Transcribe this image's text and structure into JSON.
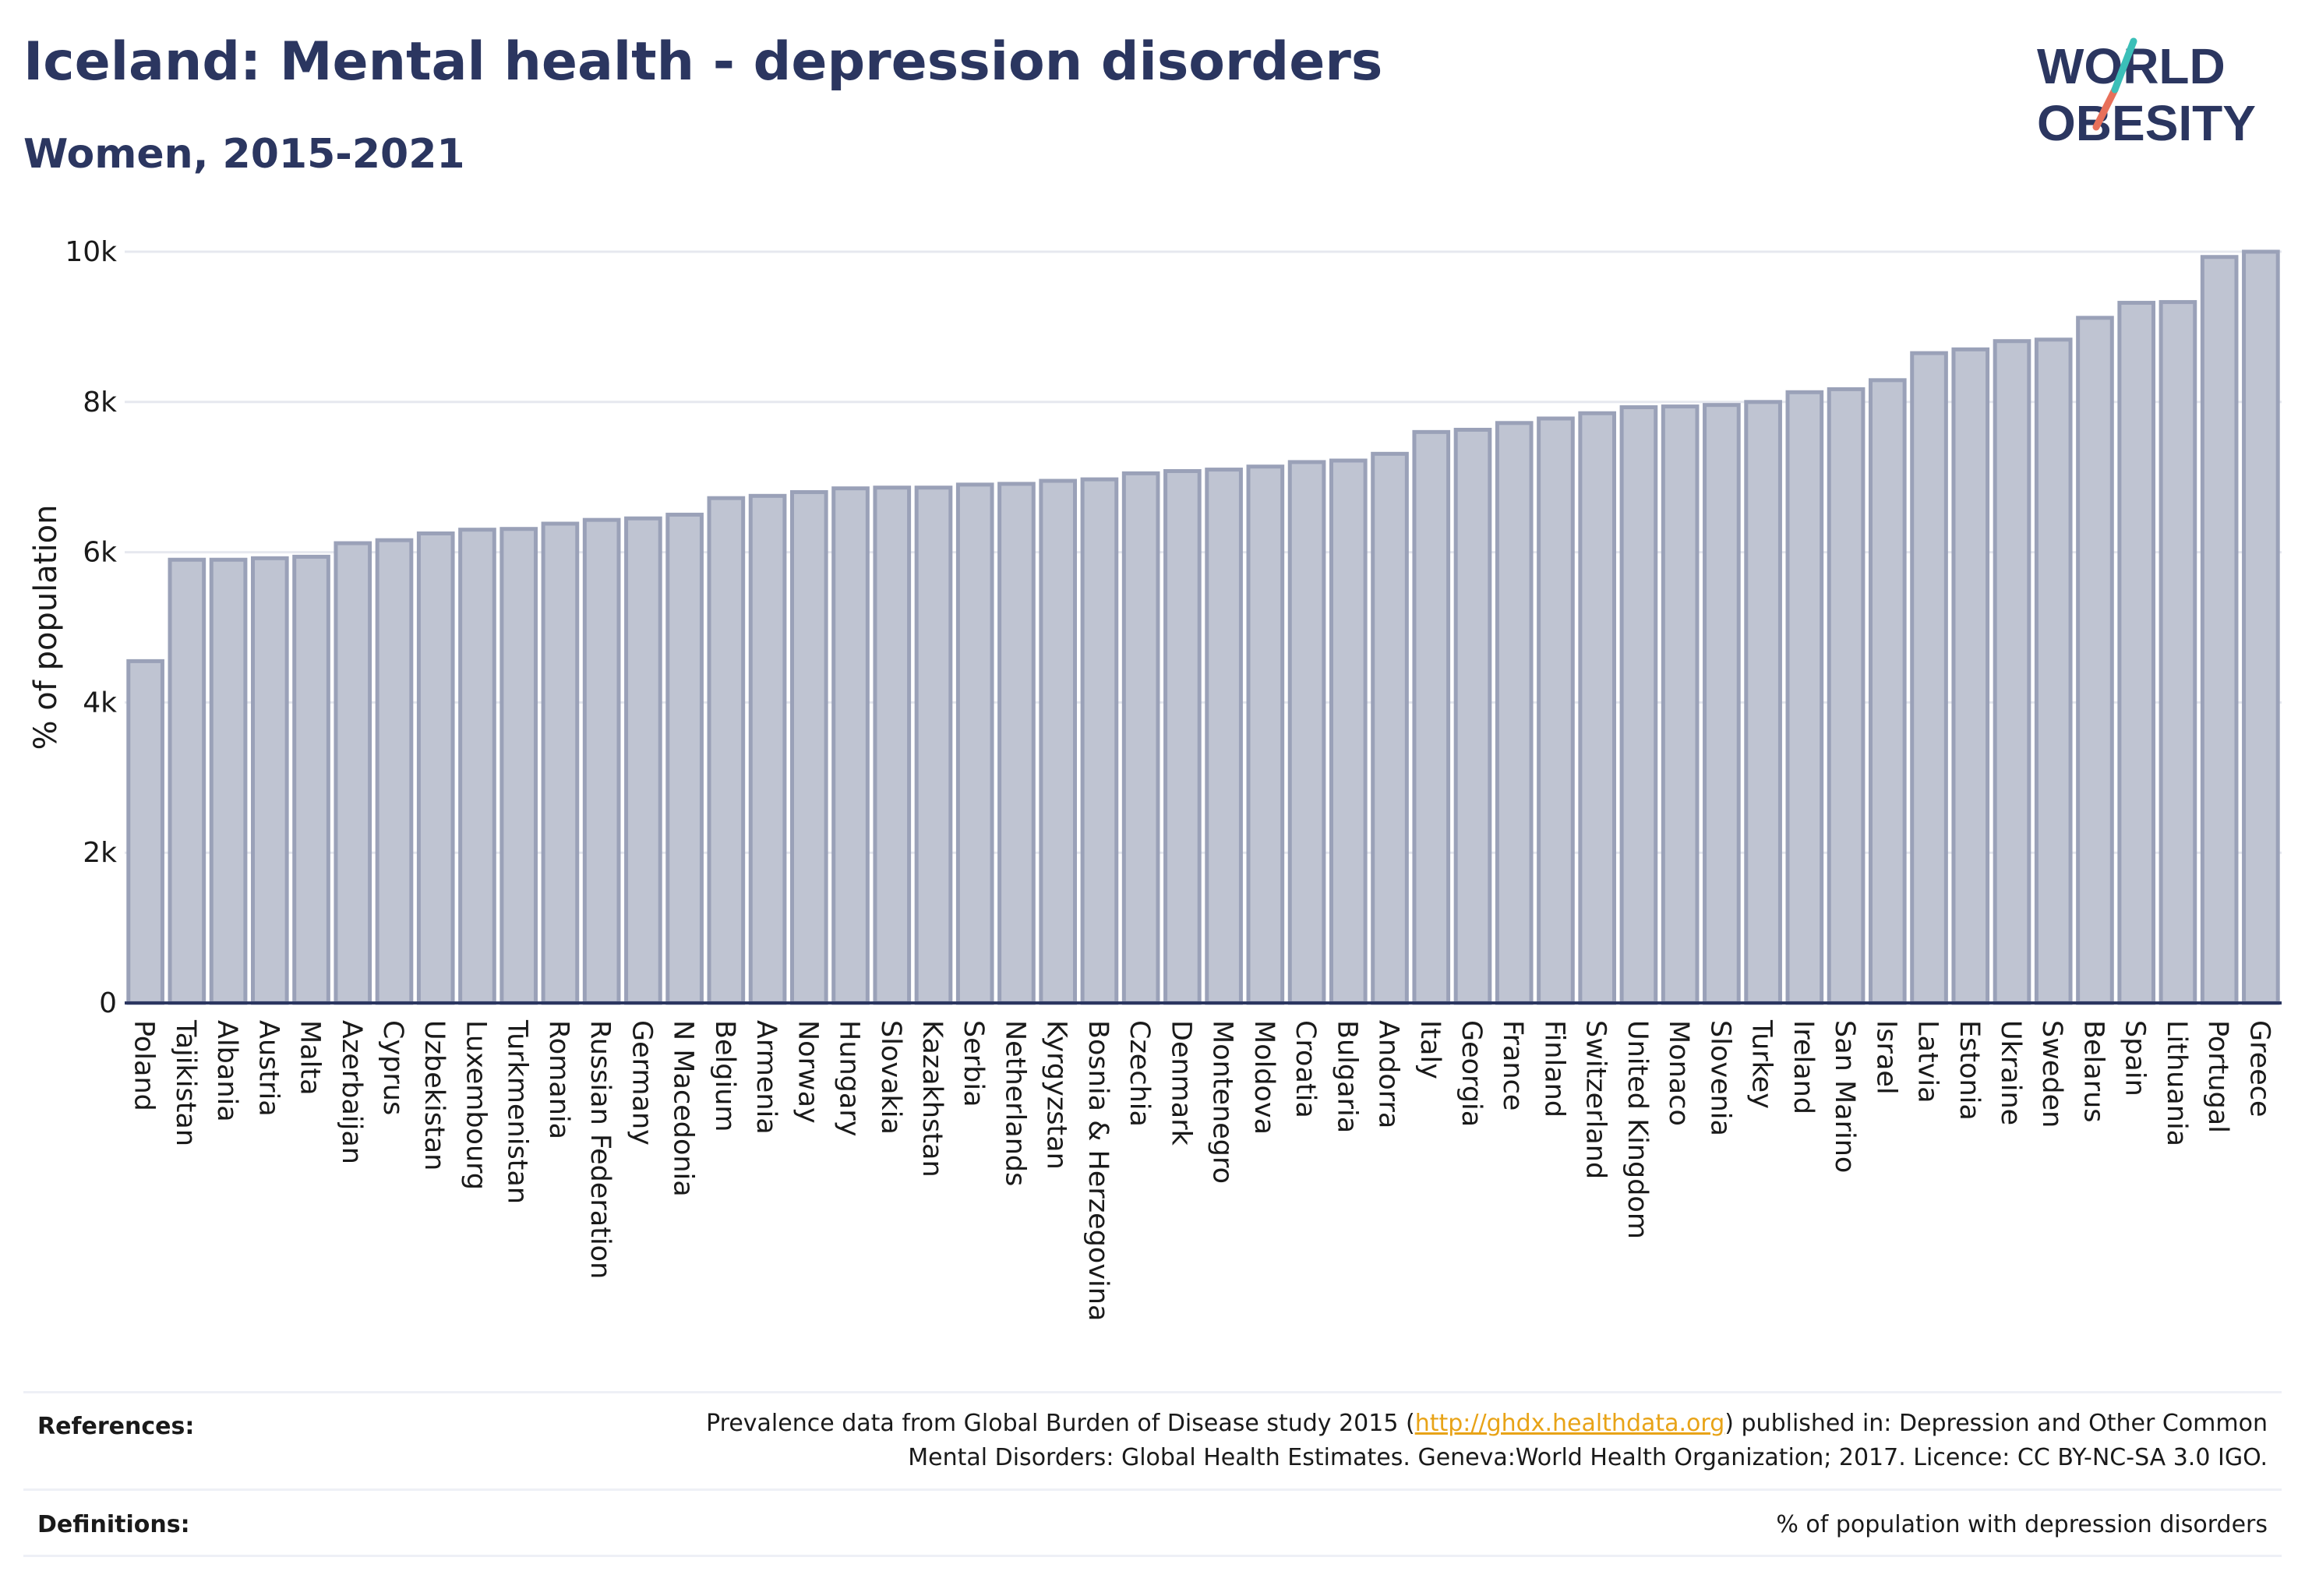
{
  "header": {
    "title": "Iceland: Mental health - depression disorders",
    "subtitle": "Women, 2015-2021"
  },
  "logo": {
    "line1": "WORLD",
    "line2": "OBESITY",
    "text_color": "#2b3660",
    "slash_top_color": "#3bbfb8",
    "slash_bottom_color": "#e8705a"
  },
  "colors": {
    "bar_fill": "#bfc4d2",
    "bar_stroke": "#9aa1b8",
    "grid": "#e6e8ef",
    "axis": "#2b3660",
    "text": "#1a1a1a",
    "link": "#e8a317"
  },
  "chart_data": {
    "type": "bar",
    "title": "",
    "xlabel": "",
    "ylabel": "% of population",
    "ylim": [
      0,
      10000
    ],
    "yticks": [
      0,
      2000,
      4000,
      6000,
      8000,
      10000
    ],
    "ytick_labels": [
      "0",
      "2k",
      "4k",
      "6k",
      "8k",
      "10k"
    ],
    "grid": true,
    "categories": [
      "Poland",
      "Tajikistan",
      "Albania",
      "Austria",
      "Malta",
      "Azerbaijan",
      "Cyprus",
      "Uzbekistan",
      "Luxembourg",
      "Turkmenistan",
      "Romania",
      "Russian Federation",
      "Germany",
      "N Macedonia",
      "Belgium",
      "Armenia",
      "Norway",
      "Hungary",
      "Slovakia",
      "Kazakhstan",
      "Serbia",
      "Netherlands",
      "Kyrgyzstan",
      "Bosnia & Herzegovina",
      "Czechia",
      "Denmark",
      "Montenegro",
      "Moldova",
      "Croatia",
      "Bulgaria",
      "Andorra",
      "Italy",
      "Georgia",
      "France",
      "Finland",
      "Switzerland",
      "United Kingdom",
      "Monaco",
      "Slovenia",
      "Turkey",
      "Ireland",
      "San Marino",
      "Israel",
      "Latvia",
      "Estonia",
      "Ukraine",
      "Sweden",
      "Belarus",
      "Spain",
      "Lithuania",
      "Portugal",
      "Greece"
    ],
    "values": [
      4550,
      5900,
      5900,
      5920,
      5940,
      6120,
      6160,
      6250,
      6300,
      6310,
      6380,
      6430,
      6450,
      6500,
      6720,
      6750,
      6800,
      6850,
      6860,
      6860,
      6900,
      6910,
      6950,
      6970,
      7050,
      7080,
      7100,
      7140,
      7200,
      7220,
      7310,
      7600,
      7630,
      7720,
      7780,
      7850,
      7930,
      7940,
      7960,
      8000,
      8130,
      8170,
      8290,
      8650,
      8700,
      8810,
      8830,
      9120,
      9320,
      9330,
      9930,
      10000
    ]
  },
  "footer": {
    "references_label": "References:",
    "references_line1_pre": "Prevalence data from Global Burden of Disease study 2015 (",
    "references_link": "http://ghdx.healthdata.org",
    "references_line1_post": ") published in: Depression and Other Common",
    "references_line2": "Mental Disorders: Global Health Estimates. Geneva:World Health Organization; 2017. Licence: CC BY-NC-SA 3.0 IGO.",
    "definitions_label": "Definitions:",
    "definitions_text": "% of population with depression disorders"
  }
}
